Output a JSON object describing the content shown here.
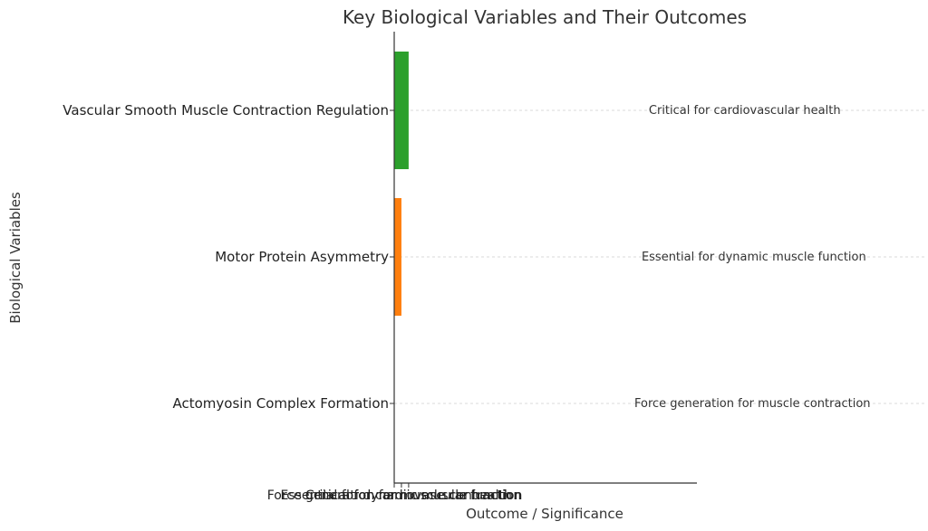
{
  "chart_data": {
    "type": "bar",
    "orientation": "horizontal",
    "title": "Key Biological Variables and Their Outcomes",
    "xlabel": "Outcome / Significance",
    "ylabel": "Biological Variables",
    "xlim": [
      0,
      21
    ],
    "grid": "horizontal dashed",
    "categories": [
      "Actomyosin Complex Formation",
      "Motor Protein Asymmetry",
      "Vascular Smooth Muscle Contraction Regulation"
    ],
    "values": [
      0,
      0.5,
      1
    ],
    "colors": [
      "#1f77b4",
      "#ff7f0e",
      "#2ca02c"
    ],
    "outcomes": [
      "Force generation for muscle contraction",
      "Essential for dynamic muscle function",
      "Critical for cardiovascular health"
    ],
    "xtick_labels": [
      "Force generation for muscle contraction",
      "Essential for dynamic muscle function",
      "Critical for cardiovascular health"
    ]
  }
}
